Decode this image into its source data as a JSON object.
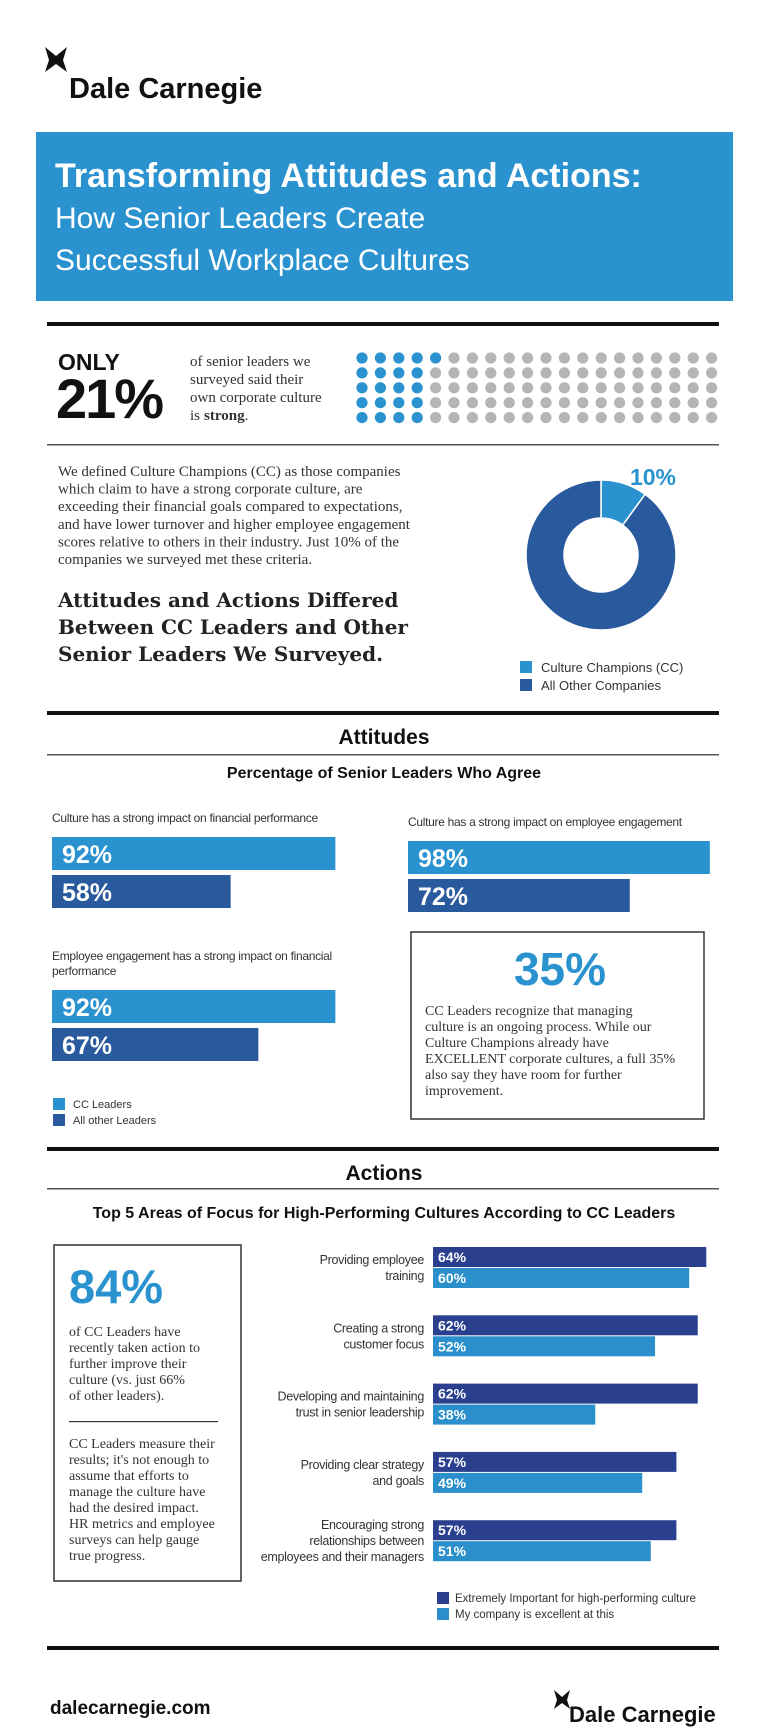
{
  "header": {
    "brand": "Dale Carnegie",
    "title": "Transforming Attitudes and Actions:",
    "subtitle_lines": [
      "How Senior Leaders Create",
      "Successful Workplace Cultures"
    ]
  },
  "intro": {
    "only": "ONLY",
    "lines": [
      "of senior leaders we",
      "surveyed said their",
      "own corporate culture",
      "is"
    ],
    "bold": "strong",
    "end": "."
  },
  "definition": {
    "lines": [
      "We defined Culture Champions (CC) as those companies",
      "which claim to have a strong corporate culture, are",
      "exceeding their financial goals compared to expectations,",
      "and have lower turnover and higher employee engagement",
      "scores relative to others in their industry. Just 10% of the",
      "companies we surveyed met these criteria."
    ],
    "heading_lines": [
      "Attitudes and Actions Differed",
      "Between CC Leaders and Other",
      "Senior Leaders We Surveyed."
    ]
  },
  "attitudes": {
    "title": "Attitudes",
    "subtitle": "Percentage of Senior Leaders Who Agree",
    "note": {
      "big": "35%",
      "lines": [
        "CC Leaders recognize that managing",
        "culture is an ongoing process. While our",
        "Culture Champions already have",
        "EXCELLENT corporate cultures, a full 35%",
        "also say they have room for further",
        "improvement."
      ]
    }
  },
  "actions": {
    "title": "Actions",
    "subtitle": "Top 5 Areas of Focus for High-Performing Cultures According to CC Leaders",
    "box": {
      "big": "84%",
      "lines": [
        "of CC Leaders have",
        "recently taken action to",
        "further improve their",
        "culture (vs. just 66%",
        "of other leaders)."
      ],
      "lines2": [
        "CC Leaders measure their",
        "results; it's not enough to",
        "assume that efforts to",
        "manage the culture have",
        "had the desired impact.",
        "HR metrics and employee",
        "surveys can help gauge",
        "true progress."
      ]
    }
  },
  "footer": {
    "url": "dalecarnegie.com",
    "brand": "Dale Carnegie"
  },
  "chart_data": [
    {
      "type": "waffle",
      "value": 21,
      "value_label": "21%",
      "color": "#2a92cf",
      "rest_color": "#b5b5b5"
    },
    {
      "type": "donut",
      "categories": [
        "Culture Champions (CC)",
        "All Other Companies"
      ],
      "values": [
        10,
        90
      ],
      "value_labels": [
        "10%",
        null
      ],
      "colors": [
        "#2a92cf",
        "#2a5a9e"
      ]
    },
    {
      "type": "hbar",
      "categories": [
        [
          "Culture has a strong impact on financial performance"
        ],
        [
          "Culture has a strong impact on employee engagement"
        ],
        [
          "Employee engagement has a strong impact on financial",
          "performance"
        ]
      ],
      "series": [
        {
          "name": "CC Leaders",
          "color": "#2a92cf",
          "values": [
            92,
            98,
            92
          ],
          "value_labels": [
            "92%",
            "98%",
            "92%"
          ]
        },
        {
          "name": "All other Leaders",
          "color": "#2a5a9e",
          "values": [
            58,
            72,
            67
          ],
          "value_labels": [
            "58%",
            "72%",
            "67%"
          ]
        }
      ]
    },
    {
      "type": "hbar",
      "categories": [
        [
          "Providing employee",
          "training"
        ],
        [
          "Creating a strong",
          "customer focus"
        ],
        [
          "Developing and maintaining",
          "trust in senior leadership"
        ],
        [
          "Providing clear strategy",
          "and goals"
        ],
        [
          "Encouraging strong",
          "relationships between",
          "employees and their managers"
        ]
      ],
      "series": [
        {
          "name": "Extremely Important for high-performing culture",
          "color": "#2b3f8f",
          "values": [
            64,
            62,
            62,
            57,
            57
          ],
          "value_labels": [
            "64%",
            "62%",
            "62%",
            "57%",
            "57%"
          ]
        },
        {
          "name": "My company is excellent at this",
          "color": "#2a8fca",
          "values": [
            60,
            52,
            38,
            49,
            51
          ],
          "value_labels": [
            "60%",
            "52%",
            "38%",
            "49%",
            "51%"
          ]
        }
      ]
    }
  ]
}
